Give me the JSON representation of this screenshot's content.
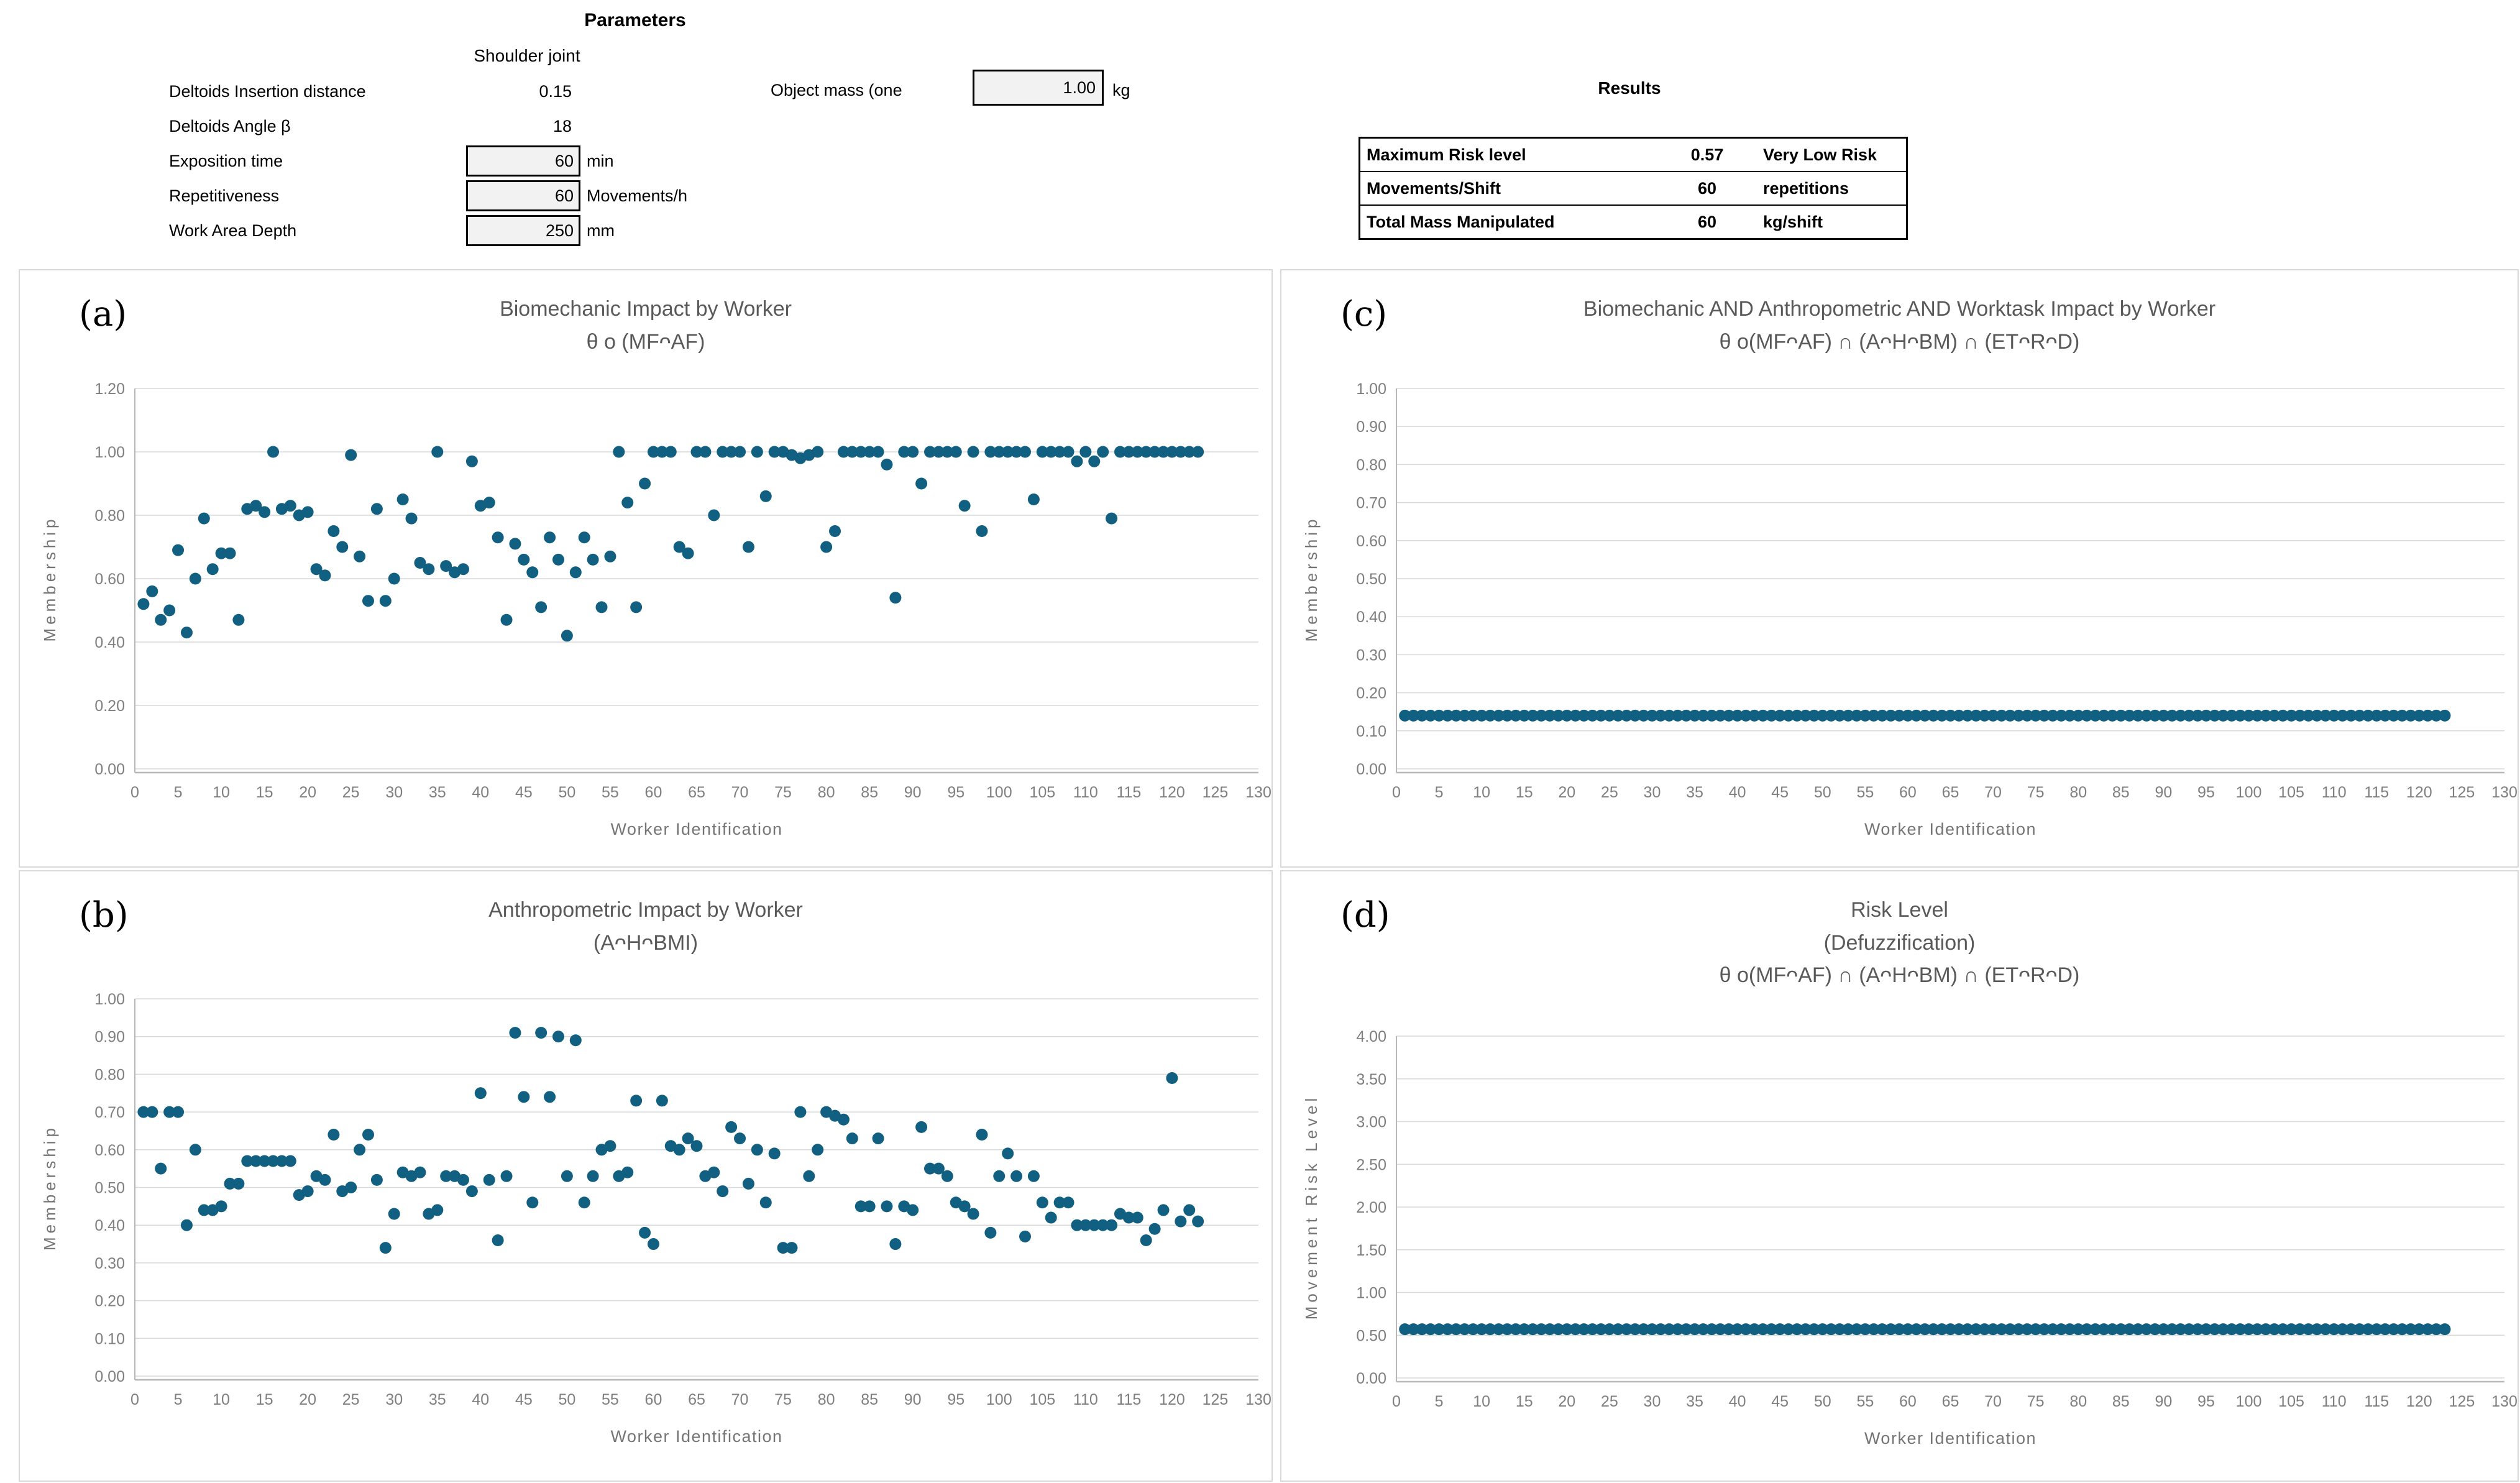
{
  "colors": {
    "dot": "#116081",
    "grid": "#d9d9d9",
    "axis": "#b7b7b7",
    "tick_text": "#7f7f7f",
    "axis_title_text": "#757575",
    "chart_title_text": "#595959",
    "input_box_fill": "#f2f2f2"
  },
  "parameters": {
    "title": "Parameters",
    "subtitle": "Shoulder joint",
    "rows": [
      {
        "label": "Deltoids Insertion distance",
        "value": "0.15",
        "unit": ""
      },
      {
        "label": "Deltoids Angle β",
        "value": "18",
        "unit": ""
      },
      {
        "label": "Exposition time",
        "value": "60",
        "unit": "min"
      },
      {
        "label": "Repetitiveness",
        "value": "60",
        "unit": "Movements/h"
      },
      {
        "label": "Work Area Depth",
        "value": "250",
        "unit": "mm"
      }
    ],
    "object_mass": {
      "label": "Object mass (one",
      "value": "1.00",
      "unit": "kg"
    }
  },
  "results": {
    "title": "Results",
    "rows": [
      {
        "label": "Maximum Risk level",
        "value": "0.57",
        "unit": "Very Low Risk"
      },
      {
        "label": "Movements/Shift",
        "value": "60",
        "unit": "repetitions"
      },
      {
        "label": "Total Mass Manipulated",
        "value": "60",
        "unit": "kg/shift"
      }
    ]
  },
  "chart_data": [
    {
      "type": "scatter",
      "panel_label": "(a)",
      "title_lines": [
        "Biomechanic Impact by Worker",
        "θ o (MFᴖAF)"
      ],
      "xlabel": "Worker Identification",
      "ylabel": "Membership",
      "xlim": [
        0,
        130
      ],
      "xtick_step": 5,
      "ylim": [
        0,
        1.2
      ],
      "ytick_step": 0.2,
      "grid": true,
      "legend": "none",
      "x_note": "workers 1..123",
      "y": [
        0.52,
        0.56,
        0.47,
        0.5,
        0.69,
        0.43,
        0.6,
        0.79,
        0.63,
        0.68,
        0.68,
        0.47,
        0.82,
        0.83,
        0.81,
        1.0,
        0.82,
        0.83,
        0.8,
        0.81,
        0.63,
        0.61,
        0.75,
        0.7,
        0.99,
        0.67,
        0.53,
        0.82,
        0.53,
        0.6,
        0.85,
        0.79,
        0.65,
        0.63,
        1.0,
        0.64,
        0.62,
        0.63,
        0.97,
        0.83,
        0.84,
        0.73,
        0.47,
        0.71,
        0.66,
        0.62,
        0.51,
        0.73,
        0.66,
        0.42,
        0.62,
        0.73,
        0.66,
        0.51,
        0.67,
        1.0,
        0.84,
        0.51,
        0.9,
        1.0,
        1.0,
        1.0,
        0.7,
        0.68,
        1.0,
        1.0,
        0.8,
        1.0,
        1.0,
        1.0,
        0.7,
        1.0,
        0.86,
        1.0,
        1.0,
        0.99,
        0.98,
        0.99,
        1.0,
        0.7,
        0.75,
        1.0,
        1.0,
        1.0,
        1.0,
        1.0,
        0.96,
        0.54,
        1.0,
        1.0,
        0.9,
        1.0,
        1.0,
        1.0,
        1.0,
        0.83,
        1.0,
        0.75,
        1.0,
        1.0,
        1.0,
        1.0,
        1.0,
        0.85,
        1.0,
        1.0,
        1.0,
        1.0,
        0.97,
        1.0,
        0.97,
        1.0,
        0.79,
        1.0,
        1.0,
        1.0,
        1.0,
        1.0,
        1.0,
        1.0,
        1.0,
        1.0,
        1.0
      ]
    },
    {
      "type": "scatter",
      "panel_label": "(b)",
      "title_lines": [
        "Anthropometric Impact by Worker",
        "(AᴖHᴖBMI)"
      ],
      "xlabel": "Worker Identification",
      "ylabel": "Membership",
      "xlim": [
        0,
        130
      ],
      "xtick_step": 5,
      "ylim": [
        0,
        1.0
      ],
      "ytick_step": 0.1,
      "grid": true,
      "legend": "none",
      "x_note": "workers 1..123",
      "y": [
        0.7,
        0.7,
        0.55,
        0.7,
        0.7,
        0.4,
        0.6,
        0.44,
        0.44,
        0.45,
        0.51,
        0.51,
        0.57,
        0.57,
        0.57,
        0.57,
        0.57,
        0.57,
        0.48,
        0.49,
        0.53,
        0.52,
        0.64,
        0.49,
        0.5,
        0.6,
        0.64,
        0.52,
        0.34,
        0.43,
        0.54,
        0.53,
        0.54,
        0.43,
        0.44,
        0.53,
        0.53,
        0.52,
        0.49,
        0.75,
        0.52,
        0.36,
        0.53,
        0.91,
        0.74,
        0.46,
        0.91,
        0.74,
        0.9,
        0.53,
        0.89,
        0.46,
        0.53,
        0.6,
        0.61,
        0.53,
        0.54,
        0.73,
        0.38,
        0.35,
        0.73,
        0.61,
        0.6,
        0.63,
        0.61,
        0.53,
        0.54,
        0.49,
        0.66,
        0.63,
        0.51,
        0.6,
        0.46,
        0.59,
        0.34,
        0.34,
        0.7,
        0.53,
        0.6,
        0.7,
        0.69,
        0.68,
        0.63,
        0.45,
        0.45,
        0.63,
        0.45,
        0.35,
        0.45,
        0.44,
        0.66,
        0.55,
        0.55,
        0.53,
        0.46,
        0.45,
        0.43,
        0.64,
        0.38,
        0.53,
        0.59,
        0.53,
        0.37,
        0.53,
        0.46,
        0.42,
        0.46,
        0.46,
        0.4,
        0.4,
        0.4,
        0.4,
        0.4,
        0.43,
        0.42,
        0.42,
        0.36,
        0.39,
        0.44,
        0.79,
        0.41,
        0.44,
        0.41
      ]
    },
    {
      "type": "scatter",
      "panel_label": "(c)",
      "title_lines": [
        "Biomechanic AND Anthropometric AND  Worktask Impact by Worker",
        "θ o(MFᴖAF) ∩ (AᴖHᴖBM) ∩ (ETᴖRᴖD)"
      ],
      "xlabel": "Worker Identification",
      "ylabel": "Membership",
      "xlim": [
        0,
        130
      ],
      "xtick_step": 5,
      "ylim": [
        0,
        1.0
      ],
      "ytick_step": 0.1,
      "grid": true,
      "legend": "none",
      "x_note": "workers 1..123, constant value",
      "n": 123,
      "y_all": 0.14
    },
    {
      "type": "scatter",
      "panel_label": "(d)",
      "title_lines": [
        "Risk Level",
        "(Defuzzification)",
        "θ o(MFᴖAF) ∩ (AᴖHᴖBM) ∩ (ETᴖRᴖD)"
      ],
      "xlabel": "Worker Identification",
      "ylabel": "Movement Risk Level",
      "xlim": [
        0,
        130
      ],
      "xtick_step": 5,
      "ylim": [
        0,
        4.0
      ],
      "ytick_step": 0.5,
      "grid": true,
      "legend": "none",
      "x_note": "workers 1..123, constant value",
      "n": 123,
      "y_all": 0.57
    }
  ]
}
